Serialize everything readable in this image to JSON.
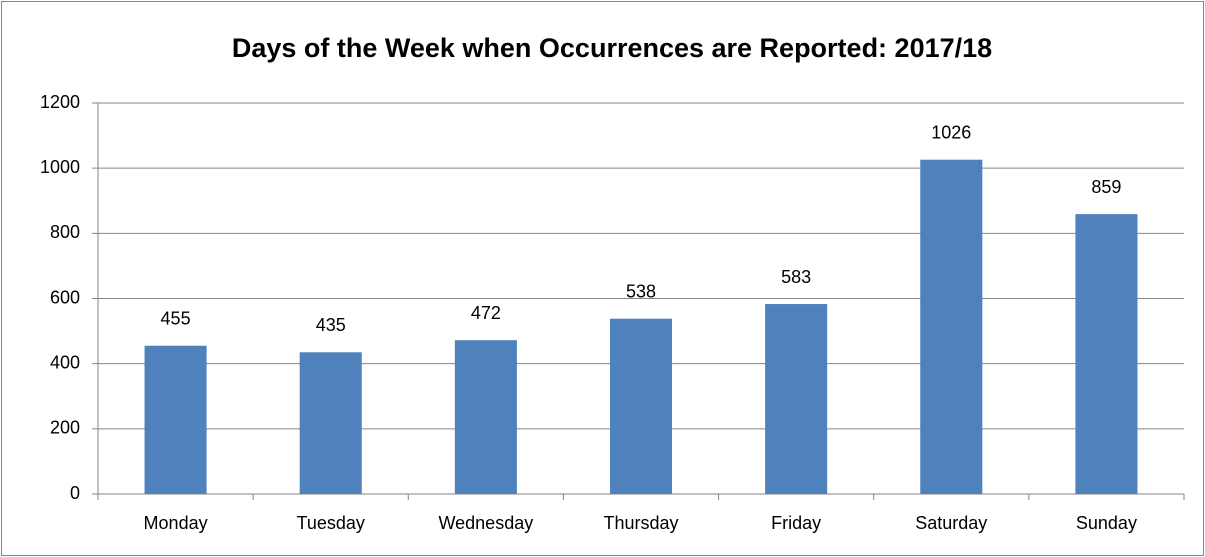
{
  "chart_data": {
    "type": "bar",
    "title": "Days of the Week when Occurrences are Reported: 2017/18",
    "categories": [
      "Monday",
      "Tuesday",
      "Wednesday",
      "Thursday",
      "Friday",
      "Saturday",
      "Sunday"
    ],
    "values": [
      455,
      435,
      472,
      538,
      583,
      1026,
      859
    ],
    "color": "#4f81bd",
    "ylim": [
      0,
      1200
    ],
    "yticks": [
      0,
      200,
      400,
      600,
      800,
      1000,
      1200
    ],
    "grid": true
  }
}
